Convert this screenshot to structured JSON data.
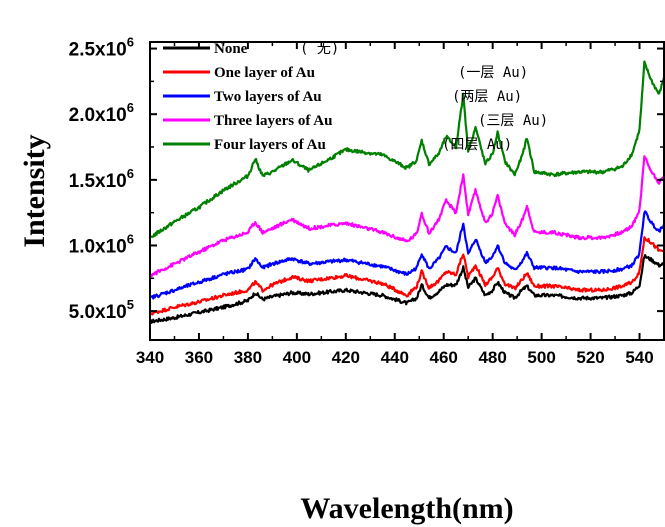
{
  "chart_data": {
    "type": "line",
    "xlabel": "Wavelength(nm)",
    "ylabel": "Intensity",
    "xlim": [
      340,
      550
    ],
    "ylim": [
      280000,
      2550000
    ],
    "x_ticks": [
      340,
      360,
      380,
      400,
      420,
      440,
      460,
      480,
      500,
      520,
      540
    ],
    "y_ticks": [
      {
        "value": 500000,
        "mantissa": "5.0x10",
        "exp": "5"
      },
      {
        "value": 1000000,
        "mantissa": "1.0x10",
        "exp": "6"
      },
      {
        "value": 1500000,
        "mantissa": "1.5x10",
        "exp": "6"
      },
      {
        "value": 2000000,
        "mantissa": "2.0x10",
        "exp": "6"
      },
      {
        "value": 2500000,
        "mantissa": "2.5x10",
        "exp": "6"
      }
    ],
    "legend_position": "top-left",
    "series": [
      {
        "name": "None",
        "note": "( 无)",
        "color": "#000000",
        "x": [
          340,
          350,
          360,
          370,
          380,
          383,
          386,
          390,
          398,
          405,
          420,
          435,
          445,
          449,
          451,
          454,
          458,
          461,
          465,
          468,
          470,
          473,
          477,
          480,
          482,
          485,
          489,
          492,
          494,
          497,
          505,
          515,
          525,
          533,
          537,
          540,
          542,
          545,
          548,
          550
        ],
        "y": [
          420000,
          450000,
          490000,
          530000,
          580000,
          640000,
          590000,
          610000,
          640000,
          630000,
          660000,
          620000,
          560000,
          600000,
          700000,
          600000,
          650000,
          700000,
          700000,
          830000,
          680000,
          750000,
          620000,
          660000,
          720000,
          640000,
          600000,
          660000,
          690000,
          620000,
          620000,
          600000,
          600000,
          620000,
          640000,
          700000,
          920000,
          890000,
          850000,
          860000
        ]
      },
      {
        "name": "One layer of Au",
        "note": "(一层 Au)",
        "color": "#ff0000",
        "x": [
          340,
          350,
          360,
          370,
          380,
          383,
          386,
          390,
          398,
          405,
          420,
          435,
          445,
          449,
          451,
          454,
          458,
          461,
          465,
          468,
          470,
          473,
          477,
          480,
          482,
          485,
          489,
          492,
          494,
          497,
          505,
          515,
          525,
          533,
          537,
          540,
          542,
          545,
          548,
          550
        ],
        "y": [
          480000,
          530000,
          570000,
          620000,
          660000,
          720000,
          660000,
          700000,
          760000,
          730000,
          770000,
          710000,
          620000,
          690000,
          800000,
          680000,
          730000,
          800000,
          780000,
          940000,
          760000,
          850000,
          700000,
          760000,
          830000,
          710000,
          670000,
          740000,
          790000,
          690000,
          690000,
          660000,
          660000,
          690000,
          720000,
          800000,
          1060000,
          1020000,
          960000,
          960000
        ]
      },
      {
        "name": "Two layers of Au",
        "note": "(两层 Au)",
        "color": "#0000ff",
        "x": [
          340,
          350,
          360,
          370,
          380,
          383,
          386,
          390,
          398,
          405,
          420,
          435,
          445,
          449,
          451,
          454,
          458,
          461,
          465,
          468,
          470,
          473,
          477,
          480,
          482,
          485,
          489,
          492,
          494,
          497,
          505,
          515,
          525,
          533,
          537,
          540,
          542,
          545,
          548,
          550
        ],
        "y": [
          600000,
          660000,
          720000,
          780000,
          820000,
          900000,
          830000,
          860000,
          900000,
          860000,
          890000,
          840000,
          780000,
          830000,
          940000,
          820000,
          900000,
          990000,
          940000,
          1170000,
          930000,
          1050000,
          870000,
          920000,
          1000000,
          870000,
          810000,
          880000,
          940000,
          830000,
          830000,
          800000,
          800000,
          820000,
          850000,
          940000,
          1260000,
          1170000,
          1110000,
          1160000
        ]
      },
      {
        "name": "Three layers of Au",
        "note": "(三层 Au)",
        "color": "#ff00ff",
        "x": [
          340,
          350,
          360,
          370,
          380,
          383,
          386,
          390,
          398,
          405,
          420,
          435,
          445,
          449,
          451,
          454,
          458,
          461,
          465,
          468,
          470,
          473,
          477,
          480,
          482,
          485,
          489,
          492,
          494,
          497,
          505,
          515,
          525,
          533,
          537,
          540,
          542,
          545,
          548,
          550
        ],
        "y": [
          770000,
          860000,
          950000,
          1040000,
          1100000,
          1180000,
          1100000,
          1130000,
          1200000,
          1130000,
          1170000,
          1100000,
          1030000,
          1090000,
          1250000,
          1090000,
          1200000,
          1340000,
          1250000,
          1540000,
          1230000,
          1420000,
          1170000,
          1250000,
          1380000,
          1170000,
          1080000,
          1190000,
          1300000,
          1100000,
          1100000,
          1060000,
          1060000,
          1100000,
          1150000,
          1270000,
          1680000,
          1560000,
          1480000,
          1520000
        ]
      },
      {
        "name": "Four layers of Au",
        "note": "(四层 Au)",
        "color": "#008000",
        "x": [
          340,
          350,
          360,
          370,
          380,
          383,
          386,
          390,
          398,
          405,
          420,
          435,
          445,
          449,
          451,
          454,
          458,
          461,
          465,
          468,
          470,
          473,
          477,
          480,
          482,
          485,
          489,
          492,
          494,
          497,
          505,
          515,
          525,
          533,
          537,
          540,
          542,
          545,
          548,
          550
        ],
        "y": [
          1060000,
          1180000,
          1290000,
          1420000,
          1530000,
          1660000,
          1530000,
          1560000,
          1650000,
          1570000,
          1730000,
          1690000,
          1590000,
          1650000,
          1800000,
          1620000,
          1700000,
          1830000,
          1750000,
          2150000,
          1720000,
          1900000,
          1620000,
          1700000,
          1860000,
          1640000,
          1540000,
          1680000,
          1820000,
          1560000,
          1540000,
          1560000,
          1560000,
          1600000,
          1700000,
          1880000,
          2390000,
          2250000,
          2150000,
          2280000
        ]
      }
    ]
  }
}
